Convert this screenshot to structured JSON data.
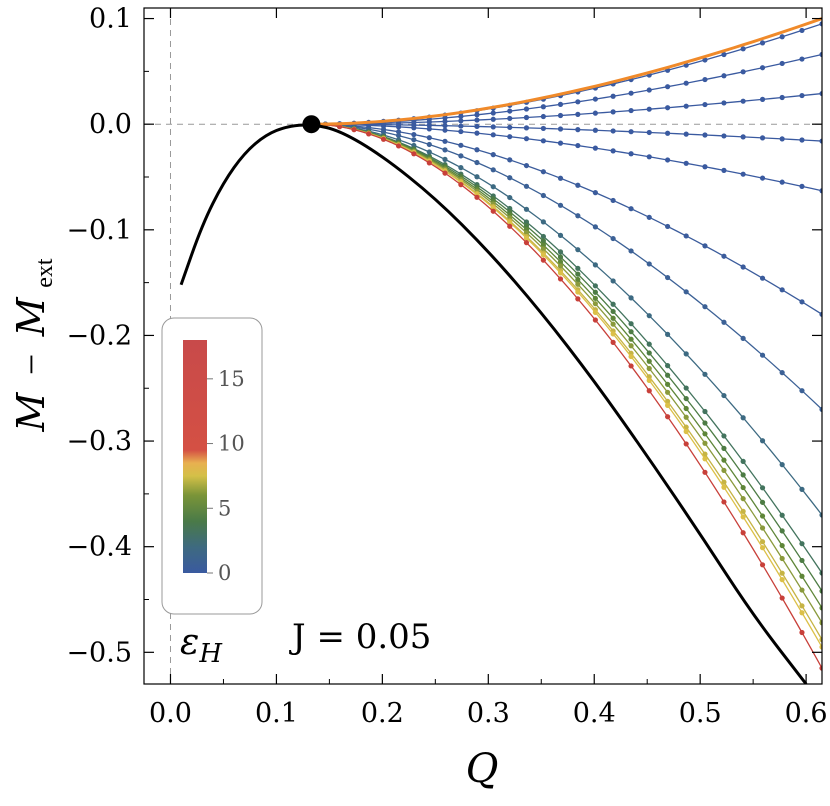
{
  "chart_data": {
    "type": "line",
    "xlabel": "Q",
    "ylabel_main": "M",
    "ylabel_minus": "−",
    "ylabel_sub": "M",
    "ylabel_sub_index": "ext",
    "xlim": [
      -0.025,
      0.615
    ],
    "ylim": [
      -0.53,
      0.11
    ],
    "x_ticks": [
      0.0,
      0.1,
      0.2,
      0.3,
      0.4,
      0.5,
      0.6
    ],
    "x_tick_labels": [
      "0.0",
      "0.1",
      "0.2",
      "0.3",
      "0.4",
      "0.5",
      "0.6"
    ],
    "y_ticks": [
      0.1,
      0.0,
      -0.1,
      -0.2,
      -0.3,
      -0.4,
      -0.5
    ],
    "y_tick_labels": [
      "0.1",
      "0.0",
      "−0.1",
      "−0.2",
      "−0.3",
      "−0.4",
      "−0.5"
    ],
    "reference_lines": {
      "x": 0.0,
      "y": 0.0
    },
    "extremal_point": {
      "x": 0.133,
      "y": 0.0
    },
    "black_curve": {
      "x": [
        0.01,
        0.03,
        0.05,
        0.07,
        0.09,
        0.11,
        0.133,
        0.16,
        0.2,
        0.25,
        0.3,
        0.35,
        0.4,
        0.45,
        0.5,
        0.55,
        0.6
      ],
      "y": [
        -0.152,
        -0.095,
        -0.055,
        -0.027,
        -0.01,
        -0.002,
        0.0,
        -0.006,
        -0.03,
        -0.07,
        -0.12,
        -0.178,
        -0.243,
        -0.314,
        -0.388,
        -0.465,
        -0.53
      ]
    },
    "series": [
      {
        "epsilon": 0.0,
        "color": "#3a5aa0",
        "end_y": 0.095
      },
      {
        "epsilon": 0.0,
        "color": "#3a5aa0",
        "end_y": 0.066
      },
      {
        "epsilon": 0.0,
        "color": "#3a5aa0",
        "end_y": 0.029
      },
      {
        "epsilon": 0.0,
        "color": "#3a5aa0",
        "end_y": -0.016
      },
      {
        "epsilon": 0.0,
        "color": "#3a5aa0",
        "end_y": -0.063
      },
      {
        "epsilon": 0.5,
        "color": "#3b5c9c",
        "end_y": -0.18
      },
      {
        "epsilon": 1.0,
        "color": "#3c6196",
        "end_y": -0.27
      },
      {
        "epsilon": 2.0,
        "color": "#3d6a82",
        "end_y": -0.37
      },
      {
        "epsilon": 3.0,
        "color": "#43745e",
        "end_y": -0.425
      },
      {
        "epsilon": 4.0,
        "color": "#4d7c44",
        "end_y": -0.442
      },
      {
        "epsilon": 5.0,
        "color": "#5e8638",
        "end_y": -0.458
      },
      {
        "epsilon": 6.0,
        "color": "#8a9a3c",
        "end_y": -0.472
      },
      {
        "epsilon": 7.0,
        "color": "#c6b444",
        "end_y": -0.488
      },
      {
        "epsilon": 8.0,
        "color": "#dcc048",
        "end_y": -0.495
      },
      {
        "epsilon": 12.0,
        "color": "#c8403a",
        "end_y": -0.515
      }
    ],
    "orange_curve": {
      "color": "#f08a2a",
      "end_y": 0.1
    },
    "colorbar": {
      "title": "ε",
      "title_sub": "H",
      "range": [
        0,
        18
      ],
      "tick_values": [
        0,
        5,
        10,
        15
      ],
      "tick_labels": [
        "0",
        "5",
        "10",
        "15"
      ],
      "stops": [
        {
          "v": 0.0,
          "color": "#3a5aa0"
        },
        {
          "v": 2.0,
          "color": "#3e6a80"
        },
        {
          "v": 4.0,
          "color": "#4a7a48"
        },
        {
          "v": 6.0,
          "color": "#7a9438"
        },
        {
          "v": 7.5,
          "color": "#d4c048"
        },
        {
          "v": 8.5,
          "color": "#e8b050"
        },
        {
          "v": 9.5,
          "color": "#d45044"
        },
        {
          "v": 18.0,
          "color": "#c84a4a"
        }
      ]
    },
    "annotation": "J = 0.05",
    "grid": false,
    "legend": "colorbar at bottom-left"
  }
}
